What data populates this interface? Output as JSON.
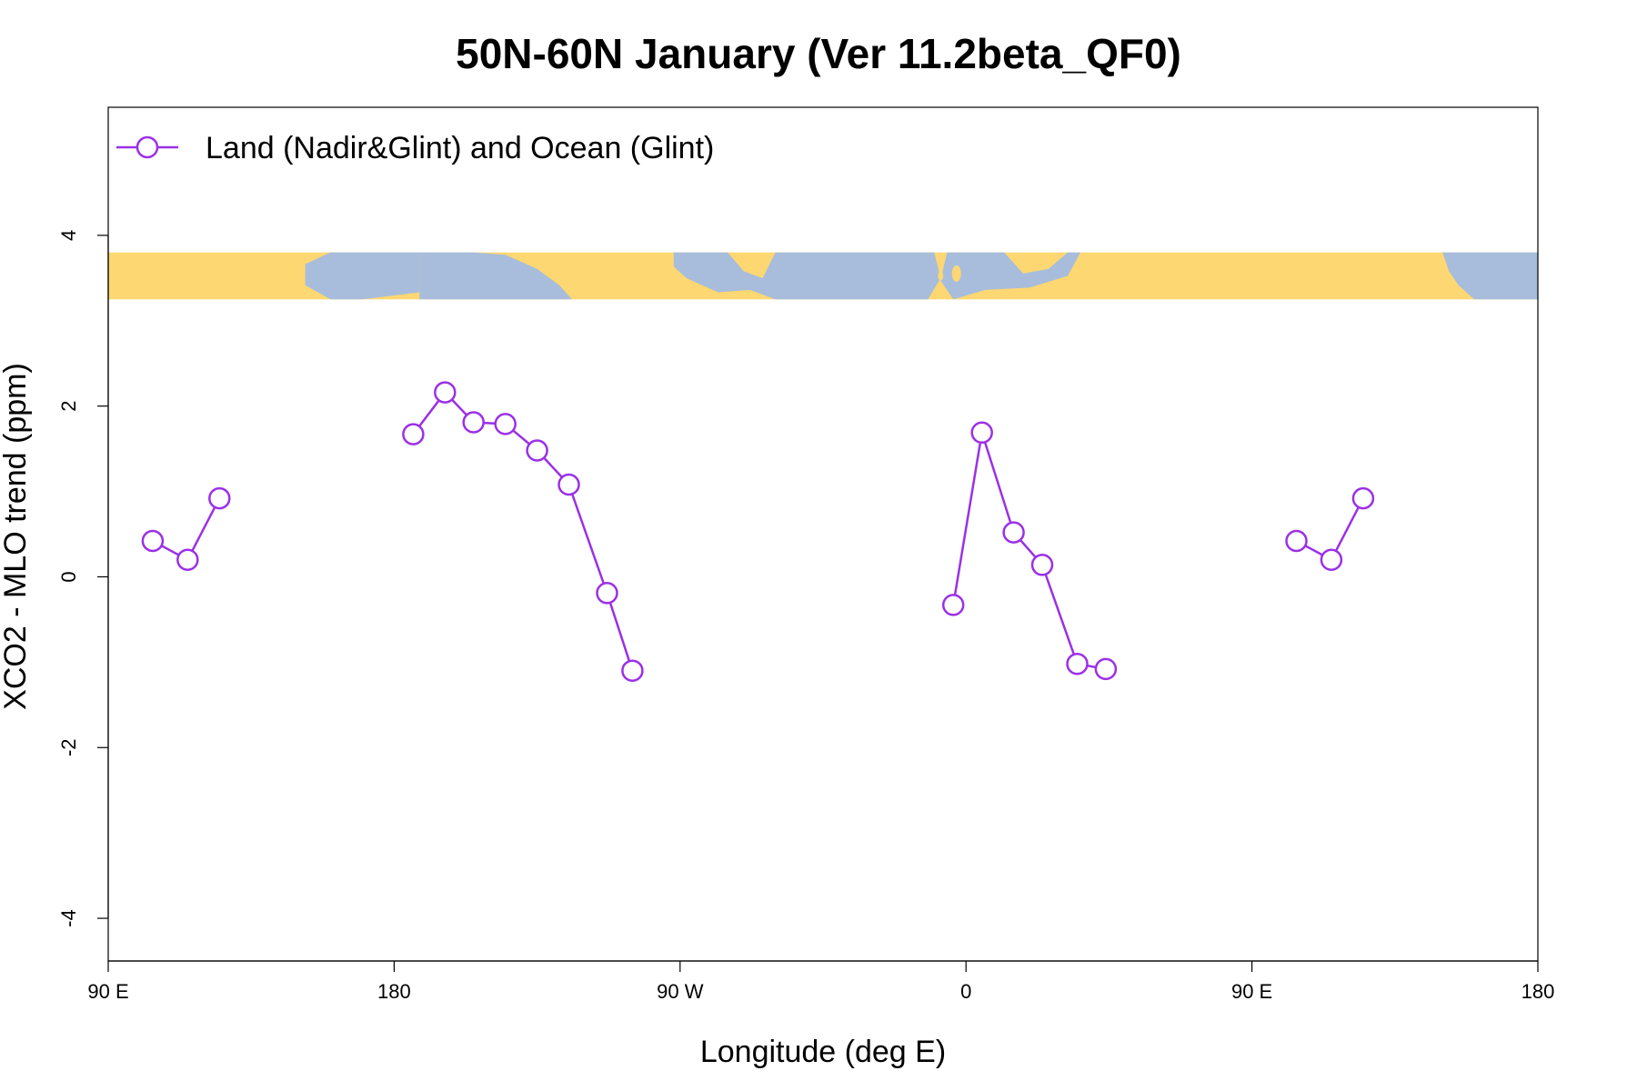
{
  "colors": {
    "series": "#9b30e6",
    "land": "#fdd772",
    "ocean": "#a7bddb",
    "frame": "#000000",
    "background": "#ffffff"
  },
  "chart_data": {
    "type": "line",
    "title": "50N-60N January (Ver 11.2beta_QF0)",
    "xlabel": "Longitude (deg E)",
    "ylabel": "XCO2 - MLO trend (ppm)",
    "xlim": [
      90,
      540
    ],
    "ylim": [
      -4.5,
      5.5
    ],
    "x_ticks": [
      {
        "value": 90,
        "label": "90 E"
      },
      {
        "value": 180,
        "label": "180"
      },
      {
        "value": 270,
        "label": "90 W"
      },
      {
        "value": 360,
        "label": "0"
      },
      {
        "value": 450,
        "label": "90 E"
      },
      {
        "value": 540,
        "label": "180"
      }
    ],
    "y_ticks": [
      {
        "value": 4,
        "label": "4"
      },
      {
        "value": 2,
        "label": "2"
      },
      {
        "value": 0,
        "label": "0"
      },
      {
        "value": -2,
        "label": "-2"
      },
      {
        "value": -4,
        "label": "-4"
      }
    ],
    "legend": {
      "position": "top-left",
      "label": "Land (Nadir&Glint) and Ocean (Glint)"
    },
    "map_strip": {
      "description_units": "y range of world map strip in data units",
      "y_bottom": 3.25,
      "y_top": 3.8
    },
    "series": [
      {
        "name": "Land (Nadir&Glint) and Ocean (Glint)",
        "segments": [
          [
            [
              104,
              0.42
            ],
            [
              115,
              0.2
            ],
            [
              125,
              0.92
            ]
          ],
          [
            [
              186,
              1.67
            ],
            [
              196,
              2.16
            ],
            [
              205,
              1.81
            ],
            [
              215,
              1.79
            ],
            [
              225,
              1.48
            ],
            [
              235,
              1.08
            ],
            [
              247,
              -0.19
            ],
            [
              255,
              -1.1
            ]
          ],
          [
            [
              356,
              -0.33
            ],
            [
              365,
              1.69
            ],
            [
              375,
              0.52
            ],
            [
              384,
              0.14
            ],
            [
              395,
              -1.02
            ],
            [
              404,
              -1.08
            ]
          ],
          [
            [
              464,
              0.42
            ],
            [
              475,
              0.2
            ],
            [
              485,
              0.92
            ]
          ]
        ]
      }
    ]
  }
}
